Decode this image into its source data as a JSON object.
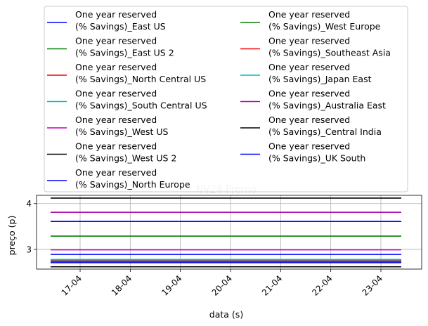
{
  "chart_data": {
    "type": "line",
    "title": "NV24 Promo",
    "xlabel": "data (s)",
    "ylabel": "preço (p)",
    "x_ticks": [
      "17-04",
      "18-04",
      "19-04",
      "20-04",
      "21-04",
      "22-04",
      "23-04"
    ],
    "x_range": [
      "16-04 (approx. 12h)",
      "23-04 (approx. 12h)"
    ],
    "y_ticks": [
      3,
      4
    ],
    "ylim": [
      2.57,
      4.18
    ],
    "grid": true,
    "legend_placement": "top, above plot, 2 columns",
    "series": [
      {
        "name": "One year reserved\n(% Savings)_East US",
        "color": "#0000ff",
        "value": 3.61
      },
      {
        "name": "One year reserved\n(% Savings)_East US 2",
        "color": "#008000",
        "value": 3.29
      },
      {
        "name": "One year reserved\n(% Savings)_North Central US",
        "color": "#ff0000",
        "value": 2.75
      },
      {
        "name": "One year reserved\n(% Savings)_South Central US",
        "color": "#00bfbf",
        "value": 2.78
      },
      {
        "name": "One year reserved\n(% Savings)_West US",
        "color": "#bf00bf",
        "value": 2.99
      },
      {
        "name": "One year reserved\n(% Savings)_West US 2",
        "color": "#000000",
        "value": 2.62
      },
      {
        "name": "One year reserved\n(% Savings)_North Europe",
        "color": "#0000ff",
        "value": 2.89
      },
      {
        "name": "One year reserved\n(% Savings)_West Europe",
        "color": "#008000",
        "value": 3.81
      },
      {
        "name": "One year reserved\n(% Savings)_Southeast Asia",
        "color": "#ff0000",
        "value": 2.73
      },
      {
        "name": "One year reserved\n(% Savings)_Japan East",
        "color": "#00bfbf",
        "value": 2.77
      },
      {
        "name": "One year reserved\n(% Savings)_Australia East",
        "color": "#bf00bf",
        "value": 3.81
      },
      {
        "name": "One year reserved\n(% Savings)_Central India",
        "color": "#000000",
        "value": 4.12
      },
      {
        "name": "One year reserved\n(% Savings)_UK South",
        "color": "#0000ff",
        "value": 2.71
      }
    ]
  }
}
